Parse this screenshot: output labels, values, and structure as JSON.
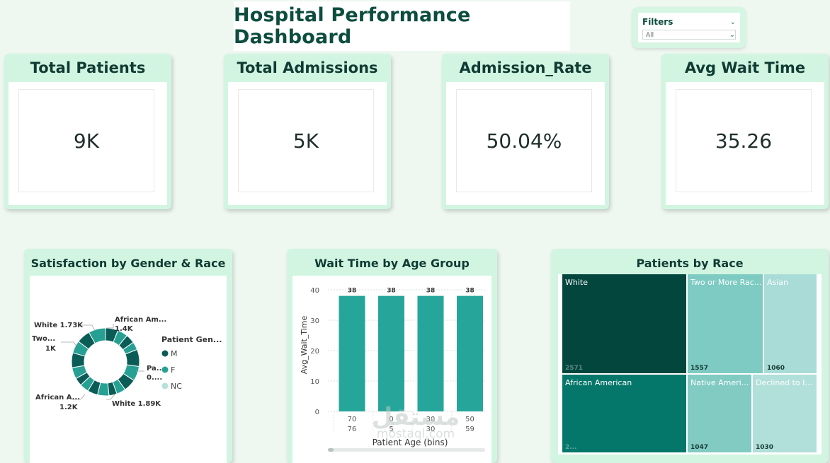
{
  "header": {
    "title": "Hospital Performance Dashboard"
  },
  "filters": {
    "label": "Filters",
    "selected": "All"
  },
  "kpis": [
    {
      "title": "Total Patients",
      "value": "9K"
    },
    {
      "title": "Total Admissions",
      "value": "5K"
    },
    {
      "title": "Admission_Rate",
      "value": "50.04%"
    },
    {
      "title": "Avg Wait Time",
      "value": "35.26"
    }
  ],
  "donut": {
    "title": "Satisfaction by Gender & Race",
    "legend_title": "Patient Gen...",
    "legend": [
      {
        "label": "M",
        "color": "#0b5c56"
      },
      {
        "label": "F",
        "color": "#27a094"
      },
      {
        "label": "NC",
        "color": "#b7e0da"
      }
    ],
    "labels": [
      {
        "text": "African Am...",
        "sub": "1.4K"
      },
      {
        "text": "White 1.73K",
        "sub": ""
      },
      {
        "text": "Two...",
        "sub": "1K"
      },
      {
        "text": "Pa...",
        "sub": "0...."
      },
      {
        "text": "African A...",
        "sub": "1.2K"
      },
      {
        "text": "White 1.89K",
        "sub": ""
      }
    ]
  },
  "chart_data": {
    "type": "bar",
    "title": "Wait Time by Age Group",
    "xlabel": "Patient Age (bins)",
    "ylabel": "Avg_Wait_Time",
    "ylim": [
      0,
      40
    ],
    "yticks": [
      0,
      10,
      20,
      30,
      40
    ],
    "categories": [
      [
        "70",
        "76"
      ],
      [
        "0",
        "5"
      ],
      [
        "30",
        "30"
      ],
      [
        "50",
        "59"
      ]
    ],
    "values": [
      38,
      38,
      38,
      38
    ],
    "color": "#26a69a"
  },
  "treemap": {
    "title": "Patients by Race",
    "cells": [
      {
        "label": "White",
        "value": "2571",
        "color": "#02463d"
      },
      {
        "label": "Two or More Rac...",
        "value": "1557",
        "color": "#7dcbc2"
      },
      {
        "label": "Asian",
        "value": "1060",
        "color": "#a9dcd7"
      },
      {
        "label": "African American",
        "value": "2...",
        "color": "#04776a"
      },
      {
        "label": "Native Ameri...",
        "value": "1047",
        "color": "#81cbc3"
      },
      {
        "label": "Declined to I...",
        "value": "1030",
        "color": "#b1dfda"
      }
    ]
  },
  "watermark": {
    "line1": "مستقل",
    "line2": "mostaql.com"
  }
}
